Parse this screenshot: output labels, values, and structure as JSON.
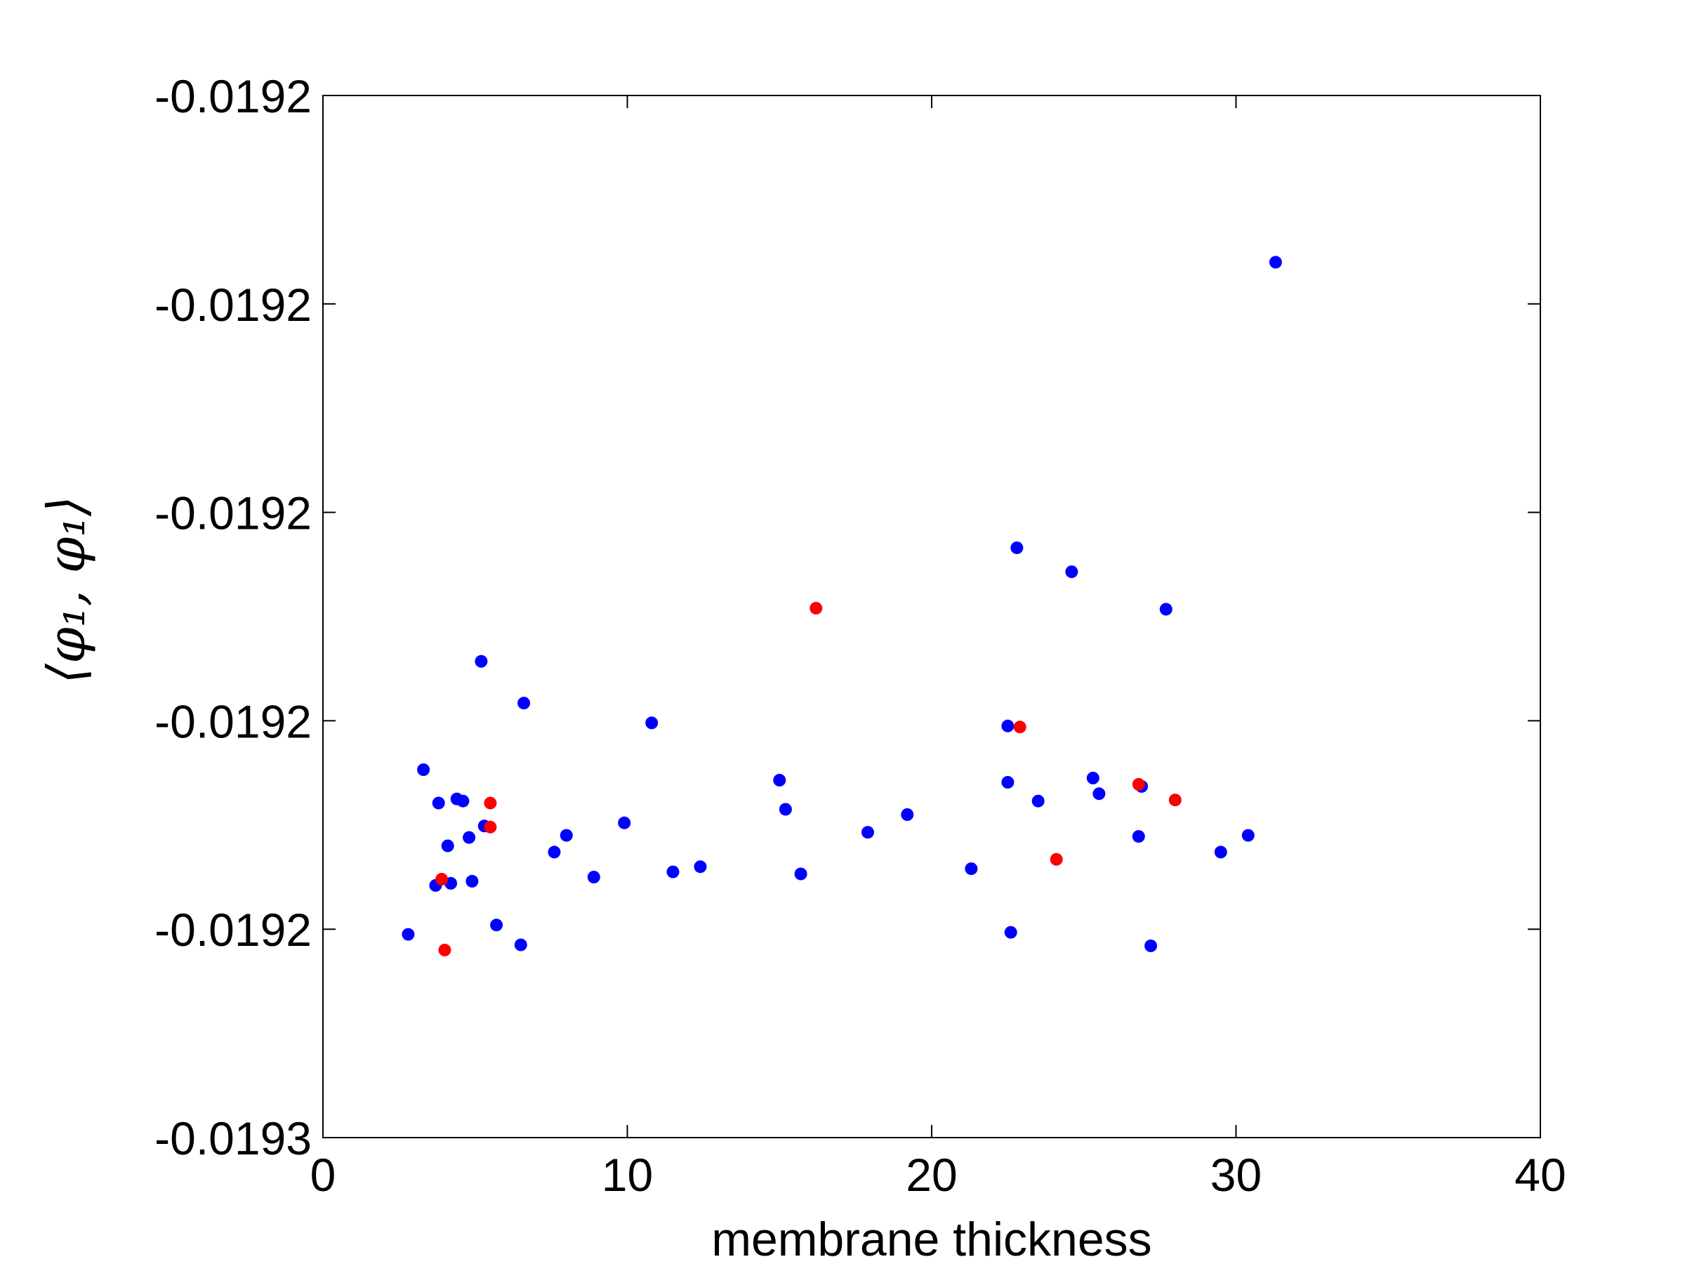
{
  "chart_data": {
    "type": "scatter",
    "title": "",
    "xlabel": "membrane thickness",
    "ylabel": "⟨φ₁, φ₁⟩",
    "xlim": [
      0,
      40
    ],
    "ylim": [
      -0.01925,
      -0.01915
    ],
    "x_ticks": [
      0,
      10,
      20,
      30,
      40
    ],
    "x_tick_labels": [
      "0",
      "10",
      "20",
      "30",
      "40"
    ],
    "y_ticks": [
      -0.01925,
      -0.01923,
      -0.01921,
      -0.01919,
      -0.01917,
      -0.01915
    ],
    "y_tick_labels": [
      "-0.0193",
      "-0.0192",
      "-0.0192",
      "-0.0192",
      "-0.0192",
      "-0.0192"
    ],
    "grid": false,
    "colors": {
      "blue": "#0000ff",
      "red": "#ff0000"
    },
    "series": [
      {
        "color": "#0000ff",
        "points": [
          [
            2.8,
            -0.0192305
          ],
          [
            3.3,
            -0.0192147
          ],
          [
            3.7,
            -0.0192258
          ],
          [
            3.8,
            -0.0192179
          ],
          [
            4.1,
            -0.019222
          ],
          [
            4.2,
            -0.0192256
          ],
          [
            4.4,
            -0.0192175
          ],
          [
            4.6,
            -0.0192177
          ],
          [
            4.8,
            -0.0192212
          ],
          [
            4.9,
            -0.0192254
          ],
          [
            5.2,
            -0.0192043
          ],
          [
            5.3,
            -0.0192201
          ],
          [
            5.7,
            -0.0192296
          ],
          [
            6.5,
            -0.0192315
          ],
          [
            6.6,
            -0.0192083
          ],
          [
            7.6,
            -0.0192226
          ],
          [
            8.0,
            -0.019221
          ],
          [
            8.9,
            -0.019225
          ],
          [
            9.9,
            -0.0192198
          ],
          [
            10.8,
            -0.0192102
          ],
          [
            11.5,
            -0.0192245
          ],
          [
            12.4,
            -0.019224
          ],
          [
            15.0,
            -0.0192157
          ],
          [
            15.2,
            -0.0192185
          ],
          [
            15.7,
            -0.0192247
          ],
          [
            17.9,
            -0.0192207
          ],
          [
            19.2,
            -0.019219
          ],
          [
            21.3,
            -0.0192242
          ],
          [
            22.5,
            -0.0192105
          ],
          [
            22.5,
            -0.0192159
          ],
          [
            22.6,
            -0.0192303
          ],
          [
            22.8,
            -0.0191934
          ],
          [
            23.5,
            -0.0192177
          ],
          [
            24.6,
            -0.0191957
          ],
          [
            25.3,
            -0.0192155
          ],
          [
            25.5,
            -0.019217
          ],
          [
            26.8,
            -0.0192211
          ],
          [
            26.9,
            -0.0192163
          ],
          [
            27.2,
            -0.0192316
          ],
          [
            27.7,
            -0.0191993
          ],
          [
            29.5,
            -0.0192226
          ],
          [
            30.4,
            -0.019221
          ],
          [
            31.3,
            -0.019166
          ]
        ]
      },
      {
        "color": "#ff0000",
        "points": [
          [
            3.9,
            -0.0192252
          ],
          [
            4.0,
            -0.019232
          ],
          [
            5.5,
            -0.0192179
          ],
          [
            5.5,
            -0.0192202
          ],
          [
            16.2,
            -0.0191992
          ],
          [
            22.9,
            -0.0192106
          ],
          [
            24.1,
            -0.0192233
          ],
          [
            26.8,
            -0.0192161
          ],
          [
            28.0,
            -0.0192176
          ]
        ]
      }
    ]
  }
}
